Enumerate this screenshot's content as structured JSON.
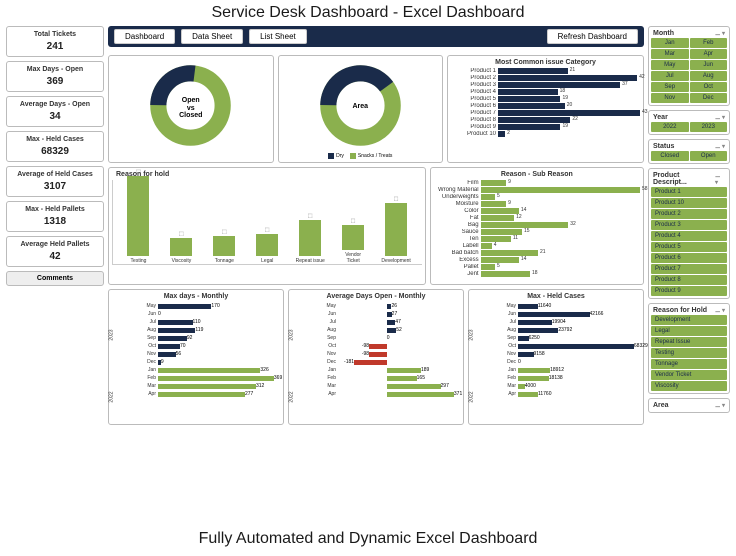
{
  "title": "Service Desk Dashboard - Excel Dashboard",
  "footer": "Fully Automated and Dynamic Excel Dashboard",
  "colors": {
    "navy": "#1a2b4a",
    "green": "#8bb04e",
    "red": "#c0392b",
    "bg": "#ffffff",
    "border": "#bbbbbb"
  },
  "nav": {
    "dashboard": "Dashboard",
    "data_sheet": "Data Sheet",
    "list_sheet": "List Sheet",
    "refresh": "Refresh Dashboard"
  },
  "kpis": [
    {
      "label": "Total Tickets",
      "value": "241"
    },
    {
      "label": "Max Days - Open",
      "value": "369"
    },
    {
      "label": "Average Days - Open",
      "value": "34"
    },
    {
      "label": "Max - Held Cases",
      "value": "68329"
    },
    {
      "label": "Average of Held Cases",
      "value": "3107"
    },
    {
      "label": "Max - Held Pallets",
      "value": "1318"
    },
    {
      "label": "Average Held Pallets",
      "value": "42"
    }
  ],
  "comments_label": "Comments",
  "donut1": {
    "center": "Open\nvs\nClosed",
    "slices": [
      {
        "label": "Open",
        "pct": 27,
        "color": "#1a2b4a"
      },
      {
        "label": "Closed",
        "pct": 73,
        "color": "#8bb04e"
      }
    ]
  },
  "donut2": {
    "center": "Area",
    "slices": [
      {
        "label": "",
        "pct": 40,
        "color": "#1a2b4a"
      },
      {
        "label": "",
        "pct": 60,
        "color": "#8bb04e"
      }
    ],
    "legend": [
      "Dry",
      "Snacks / Treats"
    ]
  },
  "issue_category": {
    "title": "Most Common issue Category",
    "items": [
      {
        "label": "Product 1",
        "value": 21,
        "max": 43
      },
      {
        "label": "Product 2",
        "value": 42,
        "max": 43
      },
      {
        "label": "Product 3",
        "value": 37,
        "max": 43
      },
      {
        "label": "Product 4",
        "value": 18,
        "max": 43
      },
      {
        "label": "Product 5",
        "value": 19,
        "max": 43
      },
      {
        "label": "Product 6",
        "value": 20,
        "max": 43
      },
      {
        "label": "Product 7",
        "value": 43,
        "max": 43
      },
      {
        "label": "Product 8",
        "value": 22,
        "max": 43
      },
      {
        "label": "Product 9",
        "value": 19,
        "max": 43
      },
      {
        "label": "Product 10",
        "value": 2,
        "max": 43
      }
    ]
  },
  "reason_hold": {
    "title": "Reason for hold",
    "items": [
      {
        "label": "Testing",
        "value": 90,
        "max": 90
      },
      {
        "label": "Viscosity",
        "value": 20,
        "max": 90
      },
      {
        "label": "Tonnage",
        "value": 22,
        "max": 90
      },
      {
        "label": "Legal",
        "value": 25,
        "max": 90
      },
      {
        "label": "Repeat issue",
        "value": 40,
        "max": 90
      },
      {
        "label": "Vendor Ticket",
        "value": 28,
        "max": 90
      },
      {
        "label": "Development",
        "value": 60,
        "max": 90
      }
    ]
  },
  "sub_reason": {
    "title": "Reason - Sub Reason",
    "items": [
      {
        "label": "Film",
        "value": 9,
        "max": 58
      },
      {
        "label": "Wrong Material",
        "value": 58,
        "max": 58
      },
      {
        "label": "Underweights",
        "value": 5,
        "max": 58
      },
      {
        "label": "Moisture",
        "value": 9,
        "max": 58
      },
      {
        "label": "Color",
        "value": 14,
        "max": 58
      },
      {
        "label": "Fat",
        "value": 12,
        "max": 58
      },
      {
        "label": "Bag",
        "value": 32,
        "max": 58
      },
      {
        "label": "Sauce",
        "value": 15,
        "max": 58
      },
      {
        "label": "Ten",
        "value": 11,
        "max": 58
      },
      {
        "label": "Labell",
        "value": 4,
        "max": 58
      },
      {
        "label": "Bad batch",
        "value": 21,
        "max": 58
      },
      {
        "label": "Excess",
        "value": 14,
        "max": 58
      },
      {
        "label": "Pallet",
        "value": 5,
        "max": 58
      },
      {
        "label": "Jent",
        "value": 18,
        "max": 58
      }
    ]
  },
  "monthly_max": {
    "title": "Max days - Monthly",
    "year1": "2023",
    "year2": "2022",
    "items": [
      {
        "y": "2023",
        "m": "May",
        "v": 170,
        "max": 369,
        "c": "#1a2b4a"
      },
      {
        "y": "2023",
        "m": "Jun",
        "v": 0,
        "max": 369,
        "c": "#1a2b4a"
      },
      {
        "y": "2023",
        "m": "Jul",
        "v": 110,
        "max": 369,
        "c": "#1a2b4a"
      },
      {
        "y": "2023",
        "m": "Aug",
        "v": 119,
        "max": 369,
        "c": "#1a2b4a"
      },
      {
        "y": "2023",
        "m": "Sep",
        "v": 92,
        "max": 369,
        "c": "#1a2b4a"
      },
      {
        "y": "2023",
        "m": "Oct",
        "v": 70,
        "max": 369,
        "c": "#1a2b4a"
      },
      {
        "y": "2023",
        "m": "Nov",
        "v": 56,
        "max": 369,
        "c": "#1a2b4a"
      },
      {
        "y": "2023",
        "m": "Dec",
        "v": 9,
        "max": 369,
        "c": "#1a2b4a"
      },
      {
        "y": "2022",
        "m": "Jan",
        "v": 326,
        "max": 369,
        "c": "#8bb04e"
      },
      {
        "y": "2022",
        "m": "Feb",
        "v": 369,
        "max": 369,
        "c": "#8bb04e"
      },
      {
        "y": "2022",
        "m": "Mar",
        "v": 312,
        "max": 369,
        "c": "#8bb04e"
      },
      {
        "y": "2022",
        "m": "Apr",
        "v": 277,
        "max": 369,
        "c": "#8bb04e"
      }
    ]
  },
  "monthly_avg": {
    "title": "Average Days Open - Monthly",
    "items": [
      {
        "y": "2023",
        "m": "May",
        "v": 26,
        "max": 371,
        "c": "#1a2b4a"
      },
      {
        "y": "2023",
        "m": "Jun",
        "v": 27,
        "max": 371,
        "c": "#1a2b4a"
      },
      {
        "y": "2023",
        "m": "Jul",
        "v": 47,
        "max": 371,
        "c": "#1a2b4a"
      },
      {
        "y": "2023",
        "m": "Aug",
        "v": 52,
        "max": 371,
        "c": "#1a2b4a"
      },
      {
        "y": "2023",
        "m": "Sep",
        "v": 0,
        "max": 371,
        "c": "#1a2b4a"
      },
      {
        "y": "2023",
        "m": "Oct",
        "v": -98,
        "max": 371,
        "c": "#c0392b"
      },
      {
        "y": "2023",
        "m": "Nov",
        "v": -98,
        "max": 371,
        "c": "#c0392b"
      },
      {
        "y": "2023",
        "m": "Dec",
        "v": -181,
        "max": 371,
        "c": "#c0392b"
      },
      {
        "y": "2022",
        "m": "Jan",
        "v": 189,
        "max": 371,
        "c": "#8bb04e"
      },
      {
        "y": "2022",
        "m": "Feb",
        "v": 165,
        "max": 371,
        "c": "#8bb04e"
      },
      {
        "y": "2022",
        "m": "Mar",
        "v": 297,
        "max": 371,
        "c": "#8bb04e"
      },
      {
        "y": "2022",
        "m": "Apr",
        "v": 371,
        "max": 371,
        "c": "#8bb04e"
      }
    ]
  },
  "monthly_held": {
    "title": "Max - Held Cases",
    "items": [
      {
        "y": "2023",
        "m": "May",
        "v": 11640,
        "max": 68329,
        "c": "#1a2b4a"
      },
      {
        "y": "2023",
        "m": "Jun",
        "v": 42166,
        "max": 68329,
        "c": "#1a2b4a"
      },
      {
        "y": "2023",
        "m": "Jul",
        "v": 19904,
        "max": 68329,
        "c": "#1a2b4a"
      },
      {
        "y": "2023",
        "m": "Aug",
        "v": 23792,
        "max": 68329,
        "c": "#1a2b4a"
      },
      {
        "y": "2023",
        "m": "Sep",
        "v": 6250,
        "max": 68329,
        "c": "#1a2b4a"
      },
      {
        "y": "2023",
        "m": "Oct",
        "v": 68329,
        "max": 68329,
        "c": "#1a2b4a"
      },
      {
        "y": "2023",
        "m": "Nov",
        "v": 9158,
        "max": 68329,
        "c": "#1a2b4a"
      },
      {
        "y": "2023",
        "m": "Dec",
        "v": 0,
        "max": 68329,
        "c": "#1a2b4a"
      },
      {
        "y": "2022",
        "m": "Jan",
        "v": 18912,
        "max": 68329,
        "c": "#8bb04e"
      },
      {
        "y": "2022",
        "m": "Feb",
        "v": 18138,
        "max": 68329,
        "c": "#8bb04e"
      },
      {
        "y": "2022",
        "m": "Mar",
        "v": 4000,
        "max": 68329,
        "c": "#8bb04e"
      },
      {
        "y": "2022",
        "m": "Apr",
        "v": 11760,
        "max": 68329,
        "c": "#8bb04e"
      }
    ]
  },
  "slicers": {
    "month": {
      "title": "Month",
      "items": [
        "Jan",
        "Feb",
        "Mar",
        "Apr",
        "May",
        "Jun",
        "Jul",
        "Aug",
        "Sep",
        "Oct",
        "Nov",
        "Dec"
      ]
    },
    "year": {
      "title": "Year",
      "items": [
        "2022",
        "2023"
      ]
    },
    "status": {
      "title": "Status",
      "items": [
        "Closed",
        "Open"
      ]
    },
    "product": {
      "title": "Product Descript...",
      "items": [
        "Product 1",
        "Product 10",
        "Product 2",
        "Product 3",
        "Product 4",
        "Product 5",
        "Product 6",
        "Product 7",
        "Product 8",
        "Product 9"
      ]
    },
    "reason": {
      "title": "Reason for Hold",
      "items": [
        "Development",
        "Legal",
        "Repeat Issue",
        "Testing",
        "Tonnage",
        "Vendor Ticket",
        "Viscosity"
      ]
    },
    "area": {
      "title": "Area"
    }
  }
}
